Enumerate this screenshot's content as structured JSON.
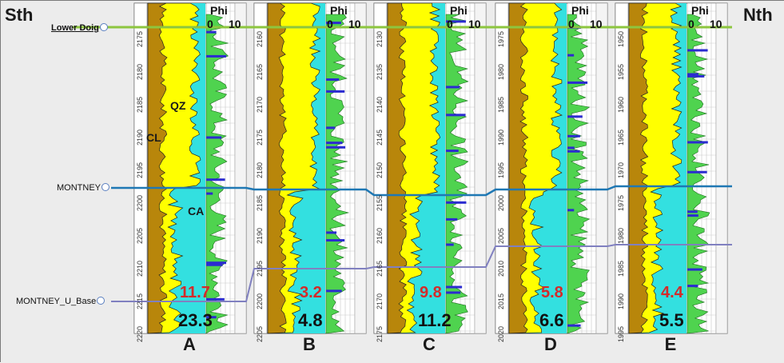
{
  "titles": {
    "south": "Sth",
    "north": "Nth"
  },
  "markers": {
    "lower_doig": "Lower Doig",
    "montney": "MONTNEY",
    "montney_u_base": "MONTNEY_U_Base"
  },
  "lithology": {
    "cl": "CL",
    "qz": "QZ",
    "ca": "CA"
  },
  "track": {
    "phi_title": "Phi",
    "scale_min": "0",
    "scale_max": "10"
  },
  "colors": {
    "lower_doig_line": "#8dc63f",
    "montney_line": "#1f78b4",
    "u_base_line": "#8080c0",
    "clay": "#b8860b",
    "quartz": "#ffff00",
    "carbonate": "#33e0e0",
    "red_value": "#d42a2a"
  },
  "wells": [
    {
      "label": "A",
      "red_value": "11.7",
      "black_value": "23.3",
      "depths": [
        "2175",
        "2180",
        "2185",
        "2190",
        "2195",
        "2200",
        "2205",
        "2210",
        "2215",
        "2220"
      ]
    },
    {
      "label": "B",
      "red_value": "3.2",
      "black_value": "4.8",
      "depths": [
        "2160",
        "2165",
        "2170",
        "2175",
        "2180",
        "2185",
        "2190",
        "2195",
        "2200",
        "2205"
      ]
    },
    {
      "label": "C",
      "red_value": "9.8",
      "black_value": "11.2",
      "depths": [
        "2130",
        "2135",
        "2140",
        "2145",
        "2150",
        "2155",
        "2160",
        "2165",
        "2170",
        "2175"
      ]
    },
    {
      "label": "D",
      "red_value": "5.8",
      "black_value": "6.6",
      "depths": [
        "1975",
        "1980",
        "1985",
        "1990",
        "1995",
        "2000",
        "2005",
        "2010",
        "2015",
        "2020"
      ]
    },
    {
      "label": "E",
      "red_value": "4.4",
      "black_value": "5.5",
      "depths": [
        "1950",
        "1955",
        "1960",
        "1965",
        "1970",
        "1975",
        "1980",
        "1985",
        "1990",
        "1995"
      ]
    }
  ]
}
